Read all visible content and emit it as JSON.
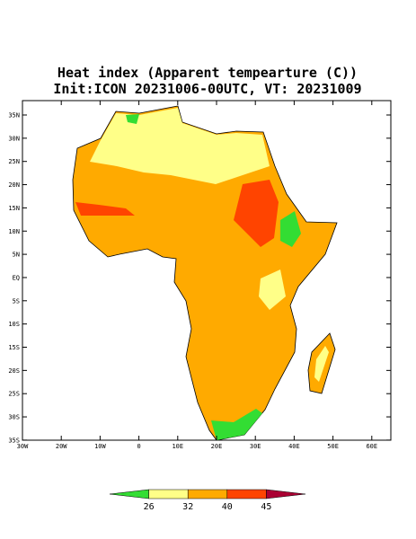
{
  "header": {
    "title": "Heat index (Apparent tempearture (C))",
    "subtitle": "Init:ICON 20231006-00UTC, VT: 20231009"
  },
  "map": {
    "lat_labels": [
      "35N",
      "30N",
      "25N",
      "20N",
      "15N",
      "10N",
      "5N",
      "EQ",
      "5S",
      "10S",
      "15S",
      "20S",
      "25S",
      "30S",
      "35S"
    ],
    "lon_labels": [
      "30W",
      "20W",
      "10W",
      "0",
      "10E",
      "20E",
      "30E",
      "40E",
      "50E",
      "60E"
    ]
  },
  "colorbar": {
    "levels": [
      26,
      32,
      40,
      45
    ],
    "colors": [
      "#33dd33",
      "#ffff88",
      "#ffaa00",
      "#ff4400",
      "#aa0033"
    ]
  }
}
